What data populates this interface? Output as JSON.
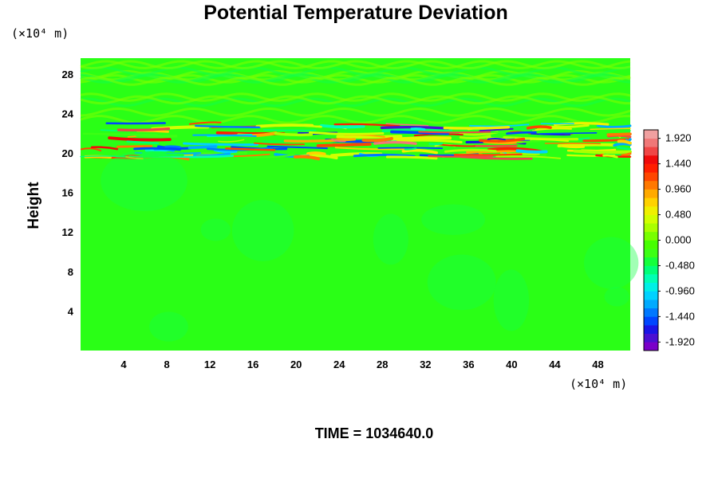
{
  "chart_data": {
    "type": "heatmap",
    "title": "Potential Temperature Deviation",
    "ylabel": "Height",
    "y_unit": "(×10⁴ m)",
    "x_unit": "(×10⁴ m)",
    "time_label": "TIME = 1034640.0",
    "xlim": [
      0,
      51
    ],
    "ylim": [
      0,
      29.6
    ],
    "x_ticks": [
      "4",
      "8",
      "12",
      "16",
      "20",
      "24",
      "28",
      "32",
      "36",
      "40",
      "44",
      "48"
    ],
    "y_ticks": [
      "4",
      "8",
      "12",
      "16",
      "20",
      "24",
      "28"
    ],
    "colorbar": {
      "range": [
        -2.08,
        2.08
      ],
      "tick_labels": [
        "1.920",
        "1.440",
        "0.960",
        "0.480",
        "0.000",
        "-0.480",
        "-0.960",
        "-1.440",
        "-1.920"
      ],
      "colors": [
        "#7a00c8",
        "#4b0fd2",
        "#1a14e6",
        "#0046ff",
        "#0078ff",
        "#00aaff",
        "#00d2ff",
        "#00f0e6",
        "#00ffb4",
        "#00ff78",
        "#14ff3c",
        "#3cff14",
        "#46ff00",
        "#78ff00",
        "#aaff00",
        "#d2ff00",
        "#f0f000",
        "#ffd200",
        "#ffaa00",
        "#ff7800",
        "#ff4600",
        "#ff1e00",
        "#f00a0a",
        "#f04646",
        "#f07878",
        "#f0a0a0"
      ]
    },
    "field": {
      "background_value": 0.0,
      "disturbance_band_y": [
        19.6,
        23.0
      ],
      "disturbance_min": -1.92,
      "disturbance_max": 1.92
    }
  }
}
